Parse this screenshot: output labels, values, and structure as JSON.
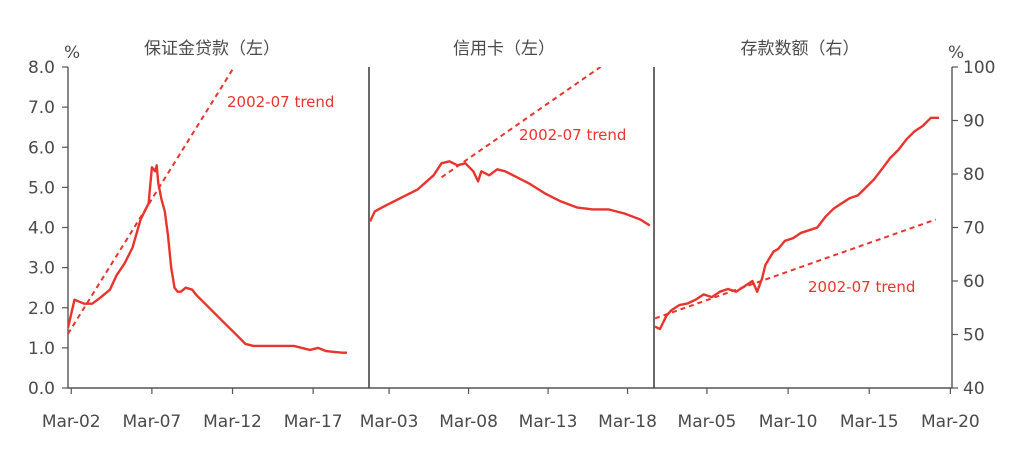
{
  "chart_data": [
    {
      "type": "line",
      "title": "保证金贷款（左）",
      "y_unit": "%",
      "axis": "left",
      "ylim": [
        0,
        8
      ],
      "yticks": [
        "0.0",
        "1.0",
        "2.0",
        "3.0",
        "4.0",
        "5.0",
        "6.0",
        "7.0",
        "8.0"
      ],
      "xlim": [
        2002.0,
        2020.6
      ],
      "xticks": [
        {
          "label": "Mar-02",
          "x": 2002.2
        },
        {
          "label": "Mar-07",
          "x": 2007.2
        },
        {
          "label": "Mar-12",
          "x": 2012.2
        },
        {
          "label": "Mar-17",
          "x": 2017.2
        }
      ],
      "series": [
        {
          "style": "solid",
          "x": [
            2002.0,
            2002.4,
            2003.0,
            2003.5,
            2004.0,
            2004.6,
            2005.0,
            2005.5,
            2006.0,
            2006.5,
            2007.0,
            2007.2,
            2007.4,
            2007.5,
            2007.6,
            2007.8,
            2008.0,
            2008.2,
            2008.4,
            2008.6,
            2008.8,
            2009.0,
            2009.3,
            2009.7,
            2010.0,
            2010.5,
            2011.0,
            2011.5,
            2012.0,
            2012.5,
            2013.0,
            2013.5,
            2014.5,
            2015.5,
            2016.0,
            2016.5,
            2017.0,
            2017.5,
            2018.0,
            2018.5,
            2019.0,
            2019.3
          ],
          "y": [
            1.5,
            2.2,
            2.1,
            2.1,
            2.25,
            2.45,
            2.8,
            3.1,
            3.5,
            4.2,
            4.6,
            5.5,
            5.4,
            5.55,
            5.1,
            4.7,
            4.4,
            3.8,
            3.0,
            2.5,
            2.4,
            2.4,
            2.5,
            2.45,
            2.3,
            2.1,
            1.9,
            1.7,
            1.5,
            1.3,
            1.1,
            1.05,
            1.05,
            1.05,
            1.05,
            1.0,
            0.95,
            1.0,
            0.92,
            0.9,
            0.88,
            0.88
          ]
        },
        {
          "style": "dashed",
          "name": "2002-07 trend",
          "x": [
            2002.0,
            2012.3
          ],
          "y": [
            1.35,
            8.0
          ]
        }
      ],
      "annotations": [
        {
          "text": "2002-07 trend",
          "near": "upper-right"
        }
      ]
    },
    {
      "type": "line",
      "title": "信用卡（左）",
      "axis": "left",
      "ylim": [
        0,
        8
      ],
      "xlim": [
        2002.0,
        2019.8
      ],
      "xticks": [
        {
          "label": "Mar-03",
          "x": 2003.2
        },
        {
          "label": "Mar-08",
          "x": 2008.2
        },
        {
          "label": "Mar-13",
          "x": 2013.2
        },
        {
          "label": "Mar-18",
          "x": 2018.2
        }
      ],
      "series": [
        {
          "style": "solid",
          "x": [
            2002.0,
            2002.3,
            2003.0,
            2004.0,
            2005.0,
            2006.0,
            2006.5,
            2007.0,
            2007.5,
            2008.0,
            2008.5,
            2008.8,
            2009.0,
            2009.5,
            2010.0,
            2010.5,
            2011.0,
            2012.0,
            2013.0,
            2014.0,
            2015.0,
            2016.0,
            2017.0,
            2018.0,
            2019.0,
            2019.6
          ],
          "y": [
            4.15,
            4.4,
            4.55,
            4.75,
            4.95,
            5.3,
            5.6,
            5.65,
            5.55,
            5.6,
            5.4,
            5.15,
            5.4,
            5.3,
            5.45,
            5.4,
            5.3,
            5.1,
            4.85,
            4.65,
            4.5,
            4.45,
            4.45,
            4.35,
            4.2,
            4.05
          ]
        },
        {
          "style": "dashed",
          "name": "2002-07 trend",
          "x": [
            2006.5,
            2016.5
          ],
          "y": [
            5.25,
            8.0
          ]
        }
      ],
      "annotations": [
        {
          "text": "2002-07 trend",
          "near": "upper-right"
        }
      ]
    },
    {
      "type": "line",
      "title": "存款数额（右）",
      "y_unit": "%",
      "axis": "right",
      "ylim": [
        40,
        100
      ],
      "yticks": [
        "40",
        "50",
        "60",
        "70",
        "80",
        "90",
        "100"
      ],
      "xlim": [
        2002.0,
        2020.3
      ],
      "xticks": [
        {
          "label": "Mar-05",
          "x": 2005.2
        },
        {
          "label": "Mar-10",
          "x": 2010.2
        },
        {
          "label": "Mar-15",
          "x": 2015.2
        },
        {
          "label": "Mar-20",
          "x": 2020.2
        }
      ],
      "series": [
        {
          "style": "solid",
          "x": [
            2002.0,
            2002.3,
            2002.7,
            2003.0,
            2003.5,
            2004.0,
            2004.5,
            2005.0,
            2005.5,
            2006.0,
            2006.5,
            2007.0,
            2007.5,
            2008.0,
            2008.3,
            2008.6,
            2008.8,
            2009.0,
            2009.3,
            2009.6,
            2010.0,
            2010.5,
            2011.0,
            2011.5,
            2012.0,
            2012.5,
            2013.0,
            2013.5,
            2014.0,
            2014.5,
            2015.0,
            2015.5,
            2016.0,
            2016.5,
            2017.0,
            2017.5,
            2018.0,
            2018.5,
            2019.0,
            2019.5
          ],
          "y": [
            51.5,
            51.0,
            53.5,
            54.5,
            55.5,
            55.8,
            56.5,
            57.5,
            57.0,
            58.0,
            58.5,
            58.0,
            59.0,
            60.0,
            58.0,
            60.5,
            63.0,
            64.0,
            65.5,
            66.0,
            67.5,
            68.0,
            69.0,
            69.5,
            70.0,
            72.0,
            73.5,
            74.5,
            75.5,
            76.0,
            77.5,
            79.0,
            81.0,
            83.0,
            84.5,
            86.5,
            88.0,
            89.0,
            90.5,
            90.5
          ]
        },
        {
          "style": "dashed",
          "name": "2002-07 trend",
          "x": [
            2002.0,
            2019.3
          ],
          "y": [
            53.0,
            71.5
          ]
        }
      ],
      "annotations": [
        {
          "text": "2002-07 trend",
          "near": "lower-right"
        }
      ]
    }
  ],
  "colors": {
    "series": "#e8342c",
    "axis": "#555555",
    "text": "#4a4a4a"
  }
}
